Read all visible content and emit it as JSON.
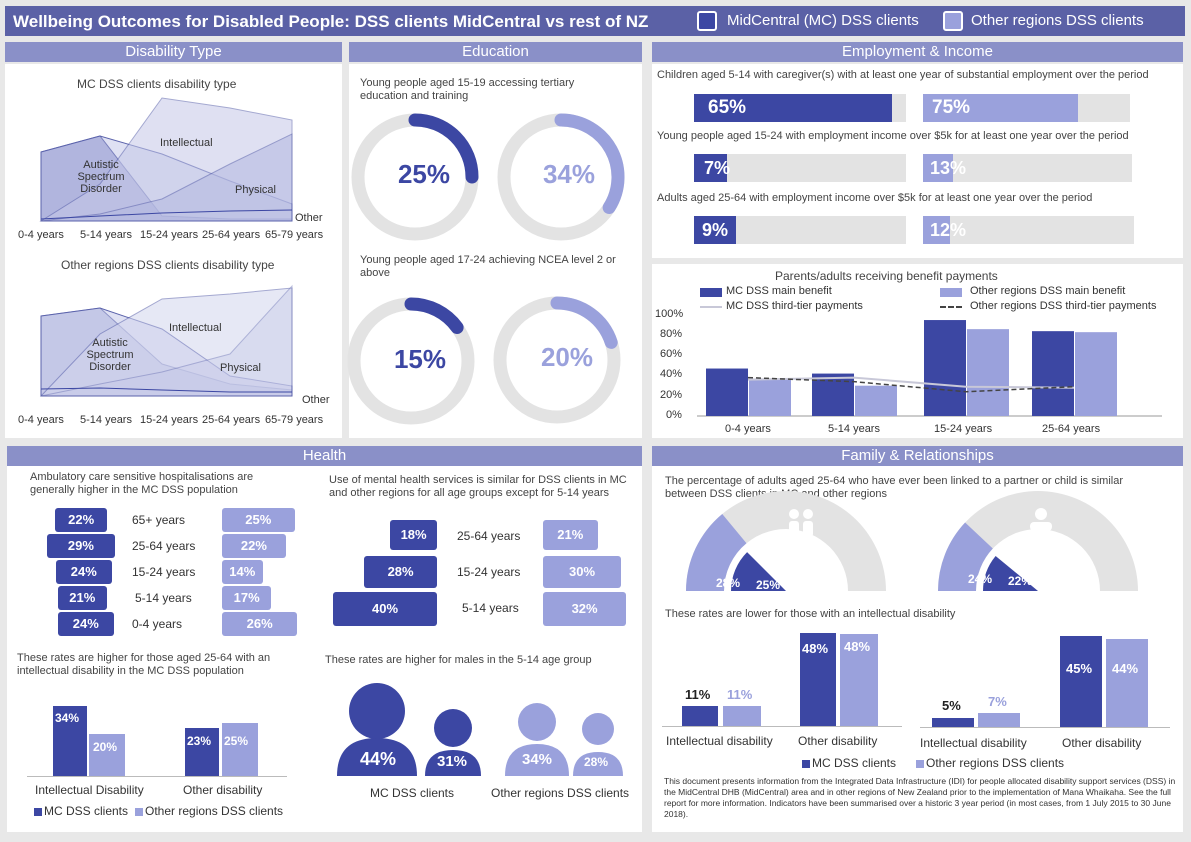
{
  "header": {
    "title": "Wellbeing Outcomes for Disabled People: DSS clients MidCentral vs rest of NZ",
    "legend_mc": "MidCentral (MC) DSS clients",
    "legend_other": "Other regions DSS clients"
  },
  "colors": {
    "dark": "#3c47a3",
    "light": "#9aa1dc",
    "header": "#5b61a6",
    "panel_title": "#8a90c8",
    "track": "#e3e3e3"
  },
  "disability": {
    "title": "Disability Type",
    "mc": {
      "title": "MC DSS clients disability type",
      "labels": [
        "Autistic Spectrum Disorder",
        "Intellectual",
        "Physical",
        "Other"
      ]
    },
    "other": {
      "title": "Other regions DSS clients disability type",
      "labels": [
        "Autistic Spectrum Disorder",
        "Intellectual",
        "Physical",
        "Other"
      ]
    },
    "ages": [
      "0-4 years",
      "5-14 years",
      "15-24 years",
      "25-64 years",
      "65-79 years"
    ]
  },
  "education": {
    "title": "Education",
    "q1": "Young people aged 15-19 accessing tertiary education and training",
    "q1_mc": "25%",
    "q1_mc_val": 25,
    "q1_other": "34%",
    "q1_other_val": 34,
    "q2": "Young people aged 17-24 achieving NCEA level 2 or above",
    "q2_mc": "15%",
    "q2_mc_val": 15,
    "q2_other": "20%",
    "q2_other_val": 20
  },
  "employment": {
    "title": "Employment & Income",
    "rows": [
      {
        "text": "Children aged 5-14 with caregiver(s) with at least one year of substantial employment over the period",
        "mc": "65%",
        "mc_val": 65,
        "other": "75%",
        "other_val": 75
      },
      {
        "text": "Young people aged 15-24 with employment income over $5k for at least one year over the period",
        "mc": "7%",
        "mc_val": 7,
        "other": "13%",
        "other_val": 13
      },
      {
        "text": "Adults aged 25-64 with employment income over $5k for at least one year over the period",
        "mc": "9%",
        "mc_val": 9,
        "other": "12%",
        "other_val": 12
      }
    ]
  },
  "benefit_chart": {
    "title": "Parents/adults receiving benefit payments",
    "legend": [
      "MC DSS main benefit",
      "Other regions DSS main benefit",
      "MC DSS third-tier payments",
      "Other regions DSS third-tier payments"
    ],
    "yticks": [
      "100%",
      "80%",
      "60%",
      "40%",
      "20%",
      "0%"
    ]
  },
  "chart_data": [
    {
      "type": "bar",
      "title": "Parents/adults receiving benefit payments",
      "categories": [
        "0-4 years",
        "5-14 years",
        "15-24 years",
        "25-64 years"
      ],
      "series": [
        {
          "name": "MC DSS main benefit",
          "values": [
            47,
            42,
            95,
            84
          ]
        },
        {
          "name": "Other regions DSS main benefit",
          "values": [
            37,
            30,
            86,
            83
          ]
        },
        {
          "name": "MC DSS third-tier payments",
          "values": [
            36,
            38,
            29,
            28
          ]
        },
        {
          "name": "Other regions DSS third-tier payments",
          "values": [
            38,
            34,
            24,
            29
          ]
        }
      ],
      "ylim": [
        0,
        100
      ]
    },
    {
      "type": "bar",
      "title": "",
      "categories": [
        "Intellectual Disability",
        "Other disability"
      ],
      "series": [
        {
          "name": "MC DSS clients",
          "values": [
            34,
            23
          ]
        },
        {
          "name": "Other regions DSS clients",
          "values": [
            20,
            25
          ]
        }
      ]
    },
    {
      "type": "bar",
      "title": "",
      "categories": [
        "Intellectual disability",
        "Other disability"
      ],
      "series": [
        {
          "name": "MC DSS clients",
          "values": [
            11,
            48
          ]
        },
        {
          "name": "Other regions DSS clients",
          "values": [
            11,
            48
          ]
        }
      ]
    },
    {
      "type": "bar",
      "title": "",
      "categories": [
        "Intellectual disability",
        "Other disability"
      ],
      "series": [
        {
          "name": "MC DSS clients",
          "values": [
            5,
            45
          ]
        },
        {
          "name": "Other regions DSS clients",
          "values": [
            7,
            44
          ]
        }
      ]
    }
  ],
  "health": {
    "title": "Health",
    "hosp_text": "Ambulatory care sensitive hospitalisations are generally higher in the MC DSS population",
    "hosp": [
      {
        "age": "65+ years",
        "mc": "22%",
        "mc_val": 22,
        "other": "25%",
        "other_val": 25
      },
      {
        "age": "25-64 years",
        "mc": "29%",
        "mc_val": 29,
        "other": "22%",
        "other_val": 22
      },
      {
        "age": "15-24 years",
        "mc": "24%",
        "mc_val": 24,
        "other": "14%",
        "other_val": 14
      },
      {
        "age": "5-14 years",
        "mc": "21%",
        "mc_val": 21,
        "other": "17%",
        "other_val": 17
      },
      {
        "age": "0-4 years",
        "mc": "24%",
        "mc_val": 24,
        "other": "26%",
        "other_val": 26
      }
    ],
    "mh_text": "Use of mental health services is similar for DSS clients in MC and other regions for all age groups except for 5-14 years",
    "mh": [
      {
        "age": "25-64 years",
        "mc": "18%",
        "mc_val": 18,
        "other": "21%",
        "other_val": 21
      },
      {
        "age": "15-24 years",
        "mc": "28%",
        "mc_val": 28,
        "other": "30%",
        "other_val": 30
      },
      {
        "age": "5-14 years",
        "mc": "40%",
        "mc_val": 40,
        "other": "32%",
        "other_val": 32
      }
    ],
    "id_text": "These rates are higher for those aged 25-64 with an intellectual disability in the MC DSS population",
    "id_chart": {
      "cats": [
        "Intellectual Disability",
        "Other disability"
      ],
      "mc": [
        "34%",
        "23%"
      ],
      "other": [
        "20%",
        "25%"
      ]
    },
    "id_legend": [
      "MC DSS clients",
      "Other regions DSS clients"
    ],
    "males_text": "These rates are higher for males in the 5-14 age group",
    "males": {
      "mc_m": "44%",
      "mc_f": "31%",
      "other_m": "34%",
      "other_f": "28%",
      "mc_label": "MC DSS clients",
      "other_label": "Other regions DSS clients"
    }
  },
  "family": {
    "title": "Family & Relationships",
    "text1": "The percentage of adults aged 25-64 who have ever been linked to a partner or child is similar between DSS clients in MC and other regions",
    "g1": {
      "other": "28%",
      "mc": "25%",
      "other_val": 28,
      "mc_val": 25
    },
    "g2": {
      "other": "24%",
      "mc": "22%",
      "other_val": 24,
      "mc_val": 22
    },
    "text2": "These rates are lower for those with an intellectual disability",
    "c1": {
      "cats": [
        "Intellectual disability",
        "Other disability"
      ],
      "mc": [
        "11%",
        "48%"
      ],
      "other": [
        "11%",
        "48%"
      ]
    },
    "c2": {
      "cats": [
        "Intellectual disability",
        "Other disability"
      ],
      "mc": [
        "5%",
        "45%"
      ],
      "other": [
        "7%",
        "44%"
      ]
    },
    "legend": [
      "MC DSS clients",
      "Other regions DSS clients"
    ],
    "footnote": "This document presents information from the Integrated Data Infrastructure (IDI) for people allocated disability support services (DSS) in the MidCentral DHB (MidCentral) area and in other regions of New Zealand prior to the implementation of Mana Whaikaha. See the full report for more information. Indicators have been summarised over a historic 3 year period (in most cases, from 1 July 2015 to 30 June 2018)."
  }
}
